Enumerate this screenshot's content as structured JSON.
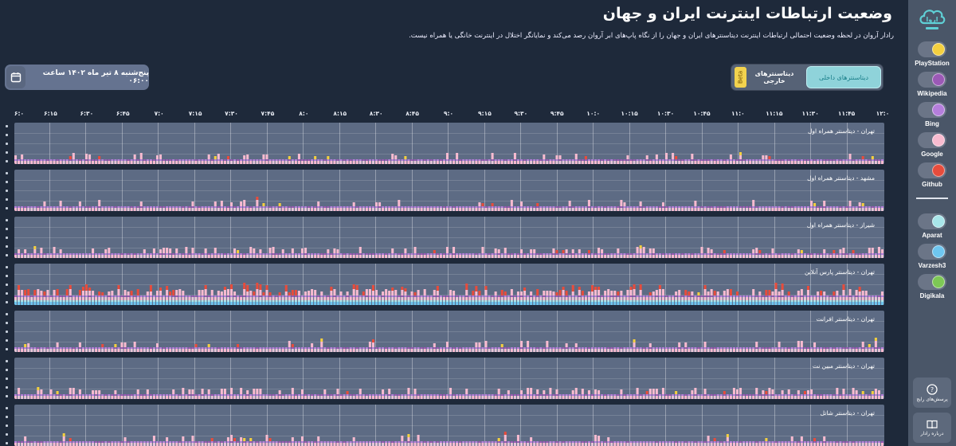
{
  "header": {
    "title": "وضعیت ارتباطات اینترنت ایران و جهان",
    "subtitle": "رادار آروان در لحظه وضعیت احتمالی ارتباطات اینترنت دیتاسنترهای ایران و جهان را از نگاه پاپ‌های ابر آروان رصد می‌کند و نمایانگر اختلال در اینترنت خانگی یا همراه نیست."
  },
  "date_picker": {
    "value": "پنج‌شنبه ۸ تیر ماه ۱۴۰۲ ساعت ۰۶:۰۰",
    "icon": "calendar-icon"
  },
  "tabs": {
    "internal": "دیتاسنترهای داخلی",
    "external": "دیتاسنترهای خارجی",
    "beta": "Beta"
  },
  "time_axis": [
    "۶:۰",
    "۶:۱۵",
    "۶:۳۰",
    "۶:۴۵",
    "۷:۰",
    "۷:۱۵",
    "۷:۳۰",
    "۷:۴۵",
    "۸:۰",
    "۸:۱۵",
    "۸:۳۰",
    "۸:۴۵",
    "۹:۰",
    "۹:۱۵",
    "۹:۳۰",
    "۹:۴۵",
    "۱۰:۰",
    "۱۰:۱۵",
    "۱۰:۳۰",
    "۱۰:۴۵",
    "۱۱:۰",
    "۱۱:۱۵",
    "۱۱:۳۰",
    "۱۱:۴۵",
    "۱۲:۰"
  ],
  "panels": [
    {
      "label": "تهران - دیتاسنتر همراه اول",
      "profile": "low"
    },
    {
      "label": "مشهد - دیتاسنتر همراه اول",
      "profile": "low"
    },
    {
      "label": "شیراز - دیتاسنتر همراه اول",
      "profile": "mid"
    },
    {
      "label": "تهران - دیتاسنتر پارس آنلاین",
      "profile": "high"
    },
    {
      "label": "تهران - دیتاسنتر افرانت",
      "profile": "low"
    },
    {
      "label": "تهران - دیتاسنتر مبین نت",
      "profile": "mid"
    },
    {
      "label": "تهران - دیتاسنتر شاتل",
      "profile": "low"
    }
  ],
  "services": [
    {
      "name": "PlayStation",
      "color": "#f4d03f",
      "enabled": true
    },
    {
      "name": "Wikipedia",
      "color": "#9b59b6",
      "enabled": true
    },
    {
      "name": "Bing",
      "color": "#b57edc",
      "enabled": true
    },
    {
      "name": "Google",
      "color": "#f8bbd0",
      "enabled": true
    },
    {
      "name": "Github",
      "color": "#e74c3c",
      "enabled": true
    },
    {
      "name": "Aparat",
      "color": "#a8e6ea",
      "enabled": true
    },
    {
      "name": "Varzesh3",
      "color": "#6ec6f0",
      "enabled": true
    },
    {
      "name": "Digikala",
      "color": "#7dc855",
      "enabled": true
    }
  ],
  "sidebar_buttons": {
    "faq": "پرسش‌های رایج",
    "about": "درباره رادار"
  }
}
